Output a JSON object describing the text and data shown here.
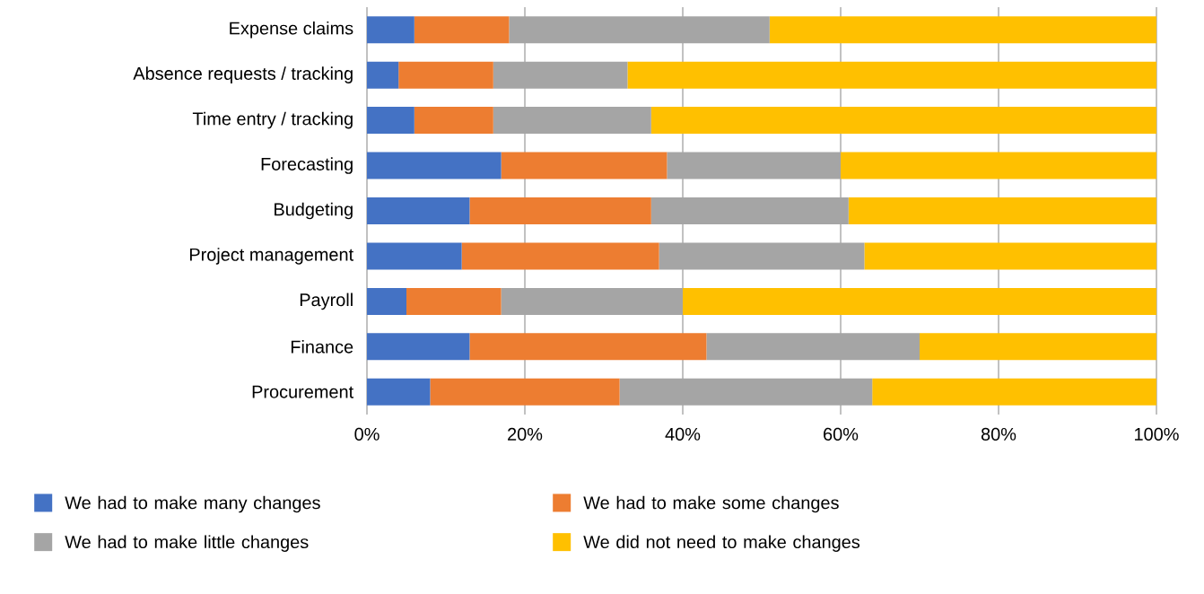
{
  "chart_data": {
    "type": "bar",
    "orientation": "horizontal",
    "stacked": true,
    "categories": [
      "Expense claims",
      "Absence requests / tracking",
      "Time entry / tracking",
      "Forecasting",
      "Budgeting",
      "Project management",
      "Payroll",
      "Finance",
      "Procurement"
    ],
    "series": [
      {
        "name": "We had to make many changes",
        "color": "#4472c4",
        "values": [
          6,
          4,
          6,
          17,
          13,
          12,
          5,
          13,
          8
        ]
      },
      {
        "name": "We had to make some changes",
        "color": "#ed7d31",
        "values": [
          12,
          12,
          10,
          21,
          23,
          25,
          12,
          30,
          24
        ]
      },
      {
        "name": "We had to make little changes",
        "color": "#a5a5a5",
        "values": [
          33,
          17,
          20,
          22,
          25,
          26,
          23,
          27,
          32
        ]
      },
      {
        "name": "We did not need to make changes",
        "color": "#ffc000",
        "values": [
          49,
          67,
          64,
          40,
          39,
          37,
          60,
          30,
          36
        ]
      }
    ],
    "xlim": [
      0,
      100
    ],
    "xticks": [
      {
        "value": 0,
        "label": "0%"
      },
      {
        "value": 20,
        "label": "20%"
      },
      {
        "value": 40,
        "label": "40%"
      },
      {
        "value": 60,
        "label": "60%"
      },
      {
        "value": 80,
        "label": "80%"
      },
      {
        "value": 100,
        "label": "100%"
      }
    ],
    "grid": "x",
    "legend": "bottom"
  }
}
